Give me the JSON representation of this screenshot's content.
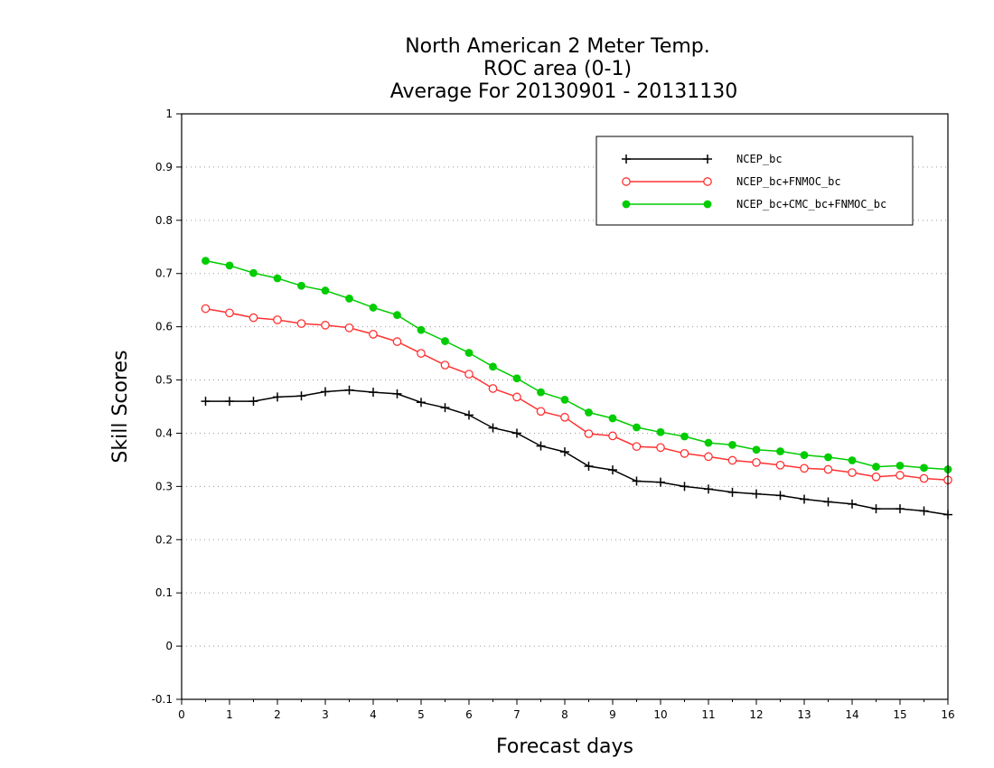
{
  "chart_data": {
    "type": "line",
    "title": [
      "North American 2 Meter Temp.",
      "ROC area (0-1)",
      "Average For 20130901 - 20131130"
    ],
    "xlabel": "Forecast days",
    "ylabel": "Skill Scores",
    "xlim": [
      0,
      16
    ],
    "ylim": [
      -0.1,
      1
    ],
    "xticks": [
      0,
      1,
      2,
      3,
      4,
      5,
      6,
      7,
      8,
      9,
      10,
      11,
      12,
      13,
      14,
      15,
      16
    ],
    "yticks": [
      -0.1,
      0,
      0.1,
      0.2,
      0.3,
      0.4,
      0.5,
      0.6,
      0.7,
      0.8,
      0.9,
      1
    ],
    "ytick_labels": [
      "-0.1",
      "0",
      "0.1",
      "0.2",
      "0.3",
      "0.4",
      "0.5",
      "0.6",
      "0.7",
      "0.8",
      "0.9",
      "1"
    ],
    "grid": "horizontal-dotted",
    "legend_position": "top-right",
    "x": [
      0.5,
      1,
      1.5,
      2,
      2.5,
      3,
      3.5,
      4,
      4.5,
      5,
      5.5,
      6,
      6.5,
      7,
      7.5,
      8,
      8.5,
      9,
      9.5,
      10,
      10.5,
      11,
      11.5,
      12,
      12.5,
      13,
      13.5,
      14,
      14.5,
      15,
      15.5,
      16
    ],
    "series": [
      {
        "name": "NCEP_bc",
        "color": "#000000",
        "marker": "plus",
        "values": [
          0.46,
          0.46,
          0.46,
          0.468,
          0.47,
          0.478,
          0.481,
          0.477,
          0.474,
          0.458,
          0.448,
          0.434,
          0.41,
          0.4,
          0.376,
          0.365,
          0.338,
          0.331,
          0.31,
          0.308,
          0.3,
          0.295,
          0.289,
          0.286,
          0.283,
          0.276,
          0.271,
          0.267,
          0.258,
          0.258,
          0.254,
          0.247
        ]
      },
      {
        "name": "NCEP_bc+FNMOC_bc",
        "color": "#ff3333",
        "marker": "open-circle",
        "values": [
          0.634,
          0.626,
          0.617,
          0.613,
          0.606,
          0.603,
          0.598,
          0.586,
          0.572,
          0.55,
          0.528,
          0.511,
          0.484,
          0.468,
          0.441,
          0.43,
          0.399,
          0.395,
          0.375,
          0.373,
          0.362,
          0.356,
          0.349,
          0.345,
          0.34,
          0.334,
          0.332,
          0.326,
          0.318,
          0.321,
          0.315,
          0.312
        ]
      },
      {
        "name": "NCEP_bc+CMC_bc+FNMOC_bc",
        "color": "#00cc00",
        "marker": "filled-circle",
        "values": [
          0.724,
          0.715,
          0.701,
          0.691,
          0.677,
          0.668,
          0.653,
          0.636,
          0.622,
          0.594,
          0.573,
          0.551,
          0.525,
          0.503,
          0.477,
          0.463,
          0.439,
          0.428,
          0.411,
          0.402,
          0.394,
          0.382,
          0.378,
          0.369,
          0.366,
          0.359,
          0.355,
          0.349,
          0.337,
          0.339,
          0.335,
          0.332
        ]
      }
    ]
  }
}
